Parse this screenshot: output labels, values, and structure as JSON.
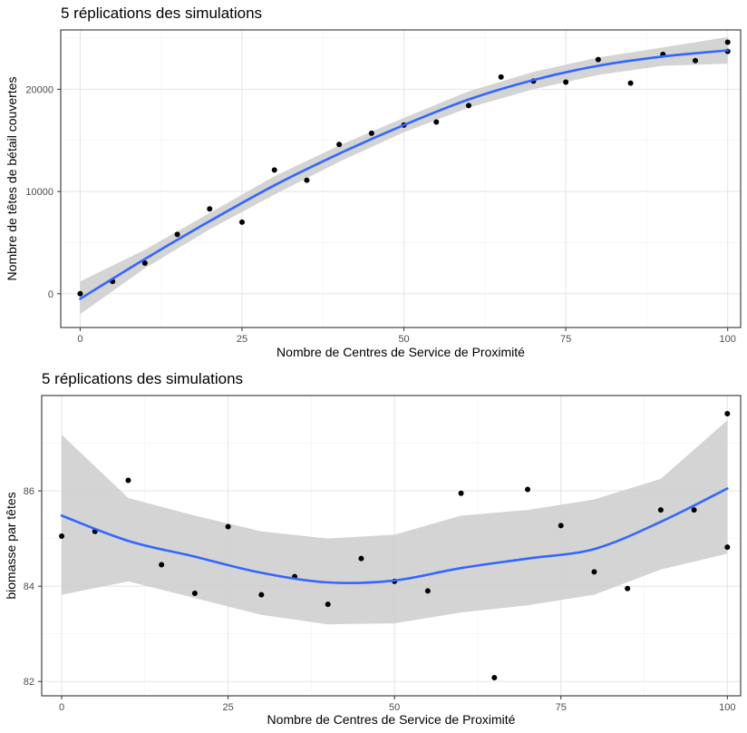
{
  "chart_data": [
    {
      "type": "scatter",
      "title": "5 réplications des simulations",
      "xlabel": "Nombre de Centres de Service de Proximité",
      "ylabel": "Nombre de têtes de bétail couvertes",
      "xlim": [
        -3,
        102
      ],
      "ylim": [
        -3300,
        25800
      ],
      "x_ticks": [
        0,
        25,
        50,
        75,
        100
      ],
      "y_ticks": [
        0,
        10000,
        20000
      ],
      "x_tick_labels": [
        "0",
        "25",
        "50",
        "75",
        "100"
      ],
      "y_tick_labels": [
        "0",
        "10000",
        "20000"
      ],
      "grid": true,
      "points": {
        "x": [
          0,
          5,
          10,
          15,
          20,
          25,
          30,
          35,
          40,
          45,
          50,
          55,
          60,
          65,
          70,
          75,
          80,
          85,
          90,
          95,
          100,
          100
        ],
        "y": [
          0,
          1200,
          3000,
          5800,
          8300,
          7000,
          12100,
          11100,
          14600,
          15700,
          16500,
          16800,
          18400,
          21200,
          20800,
          20700,
          22900,
          20600,
          23400,
          22800,
          24600,
          23700
        ],
        "color": "#000000"
      },
      "smooth_line": {
        "x": [
          0,
          10,
          20,
          30,
          40,
          50,
          60,
          70,
          80,
          90,
          100
        ],
        "y": [
          -500,
          3400,
          7100,
          10600,
          13700,
          16500,
          19000,
          20900,
          22300,
          23200,
          23800
        ],
        "color": "#3366ff"
      },
      "confidence_band": {
        "x": [
          0,
          10,
          20,
          30,
          40,
          50,
          60,
          70,
          80,
          90,
          100
        ],
        "lower": [
          -2000,
          2500,
          6300,
          9700,
          12900,
          15800,
          18200,
          20000,
          21400,
          22300,
          22500
        ],
        "upper": [
          1200,
          4300,
          7900,
          11500,
          14500,
          17200,
          19800,
          21700,
          23100,
          24100,
          25100
        ],
        "color": "#cccccc"
      }
    },
    {
      "type": "scatter",
      "title": "5 réplications des simulations",
      "xlabel": "Nombre de Centres de Service de Proximité",
      "ylabel": "biomasse par têtes",
      "xlim": [
        -3,
        102
      ],
      "ylim": [
        81.7,
        88.0
      ],
      "x_ticks": [
        0,
        25,
        50,
        75,
        100
      ],
      "y_ticks": [
        82,
        84,
        86
      ],
      "x_tick_labels": [
        "0",
        "25",
        "50",
        "75",
        "100"
      ],
      "y_tick_labels": [
        "82",
        "84",
        "86"
      ],
      "grid": true,
      "points": {
        "x": [
          0,
          5,
          10,
          15,
          20,
          25,
          30,
          35,
          40,
          45,
          50,
          55,
          60,
          65,
          70,
          75,
          80,
          85,
          90,
          95,
          100,
          100
        ],
        "y": [
          85.05,
          85.15,
          86.22,
          84.45,
          83.85,
          85.25,
          83.82,
          84.2,
          83.62,
          84.58,
          84.1,
          83.9,
          85.95,
          82.08,
          86.03,
          85.27,
          84.3,
          83.95,
          85.6,
          85.6,
          87.62,
          84.82
        ],
        "color": "#000000"
      },
      "smooth_line": {
        "x": [
          0,
          10,
          20,
          30,
          40,
          50,
          60,
          70,
          80,
          90,
          100
        ],
        "y": [
          85.48,
          84.95,
          84.62,
          84.28,
          84.08,
          84.12,
          84.38,
          84.58,
          84.78,
          85.35,
          86.05
        ],
        "color": "#3366ff"
      },
      "confidence_band": {
        "x": [
          0,
          10,
          20,
          30,
          40,
          50,
          60,
          70,
          80,
          90,
          100
        ],
        "lower": [
          83.82,
          84.1,
          83.75,
          83.4,
          83.2,
          83.22,
          83.45,
          83.6,
          83.82,
          84.35,
          84.68
        ],
        "upper": [
          87.18,
          85.85,
          85.48,
          85.15,
          85.0,
          85.08,
          85.48,
          85.6,
          85.82,
          86.25,
          87.48
        ],
        "color": "#cccccc"
      }
    }
  ]
}
